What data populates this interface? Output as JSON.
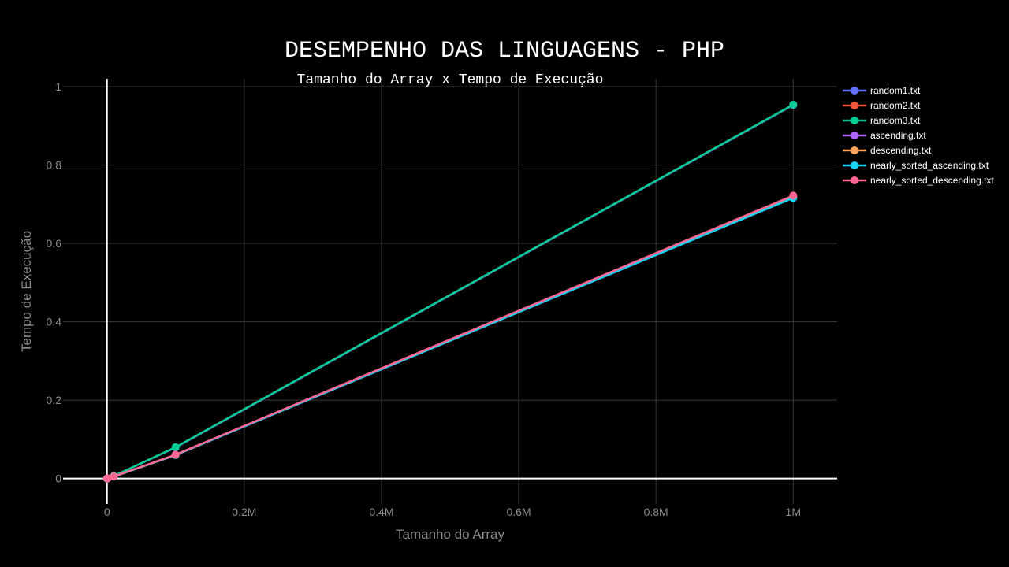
{
  "chart_data": {
    "type": "line",
    "title": "DESEMPENHO DAS LINGUAGENS - PHP",
    "subtitle": "Tamanho do Array x Tempo de Execução",
    "xlabel": "Tamanho do Array",
    "ylabel": "Tempo de Execução",
    "xlim": [
      -64000,
      1064000
    ],
    "ylim": [
      -0.065,
      1.02
    ],
    "x_ticks": [
      {
        "value": 0,
        "label": "0"
      },
      {
        "value": 200000,
        "label": "0.2M"
      },
      {
        "value": 400000,
        "label": "0.4M"
      },
      {
        "value": 600000,
        "label": "0.6M"
      },
      {
        "value": 800000,
        "label": "0.8M"
      },
      {
        "value": 1000000,
        "label": "1M"
      }
    ],
    "y_ticks": [
      {
        "value": 0,
        "label": "0"
      },
      {
        "value": 0.2,
        "label": "0.2"
      },
      {
        "value": 0.4,
        "label": "0.4"
      },
      {
        "value": 0.6,
        "label": "0.6"
      },
      {
        "value": 0.8,
        "label": "0.8"
      },
      {
        "value": 1,
        "label": "1"
      }
    ],
    "grid": true,
    "legend_position": "top-right",
    "x": [
      100,
      1000,
      10000,
      100000,
      1000000
    ],
    "series": [
      {
        "name": "random1.txt",
        "color": "#636efa",
        "values": [
          0.0001,
          0.0006,
          0.0065,
          0.079,
          0.953
        ]
      },
      {
        "name": "random2.txt",
        "color": "#ef553b",
        "values": [
          0.0001,
          0.0006,
          0.0066,
          0.08,
          0.954
        ]
      },
      {
        "name": "random3.txt",
        "color": "#00cc96",
        "values": [
          0.0001,
          0.0006,
          0.0066,
          0.08,
          0.954
        ]
      },
      {
        "name": "ascending.txt",
        "color": "#ab63fa",
        "values": [
          0.0001,
          0.0005,
          0.005,
          0.06,
          0.717
        ]
      },
      {
        "name": "descending.txt",
        "color": "#ffa15a",
        "values": [
          0.0001,
          0.0005,
          0.0051,
          0.06,
          0.72
        ]
      },
      {
        "name": "nearly_sorted_ascending.txt",
        "color": "#19d3f3",
        "values": [
          0.0001,
          0.0005,
          0.005,
          0.06,
          0.716
        ]
      },
      {
        "name": "nearly_sorted_descending.txt",
        "color": "#ff6692",
        "values": [
          0.0001,
          0.0005,
          0.0051,
          0.061,
          0.722
        ]
      }
    ]
  }
}
